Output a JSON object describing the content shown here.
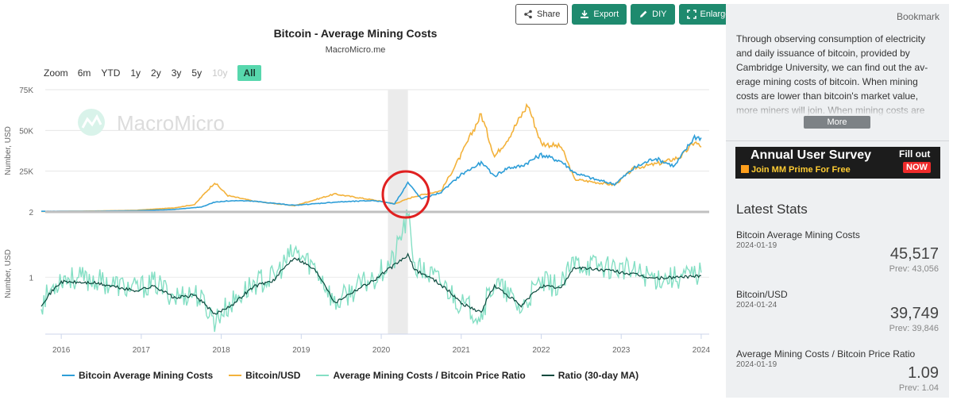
{
  "toolbar": {
    "share": "Share",
    "export": "Export",
    "diy": "DIY",
    "enlarge": "Enlarge"
  },
  "chart": {
    "title": "Bitcoin - Average Mining Costs",
    "subtitle": "MacroMicro.me",
    "watermark": "MacroMicro",
    "zoom_label": "Zoom",
    "zoom_buttons": [
      "6m",
      "YTD",
      "1y",
      "2y",
      "3y",
      "5y",
      "10y",
      "All"
    ],
    "zoom_active": "All",
    "zoom_disabled": [
      "10y"
    ],
    "upper_axis_title": "Number, USD",
    "lower_axis_title": "Number, USD",
    "upper_ticks": [
      "75K",
      "50K",
      "25K",
      "2"
    ],
    "lower_ticks": [
      "1"
    ],
    "x_ticks": [
      "2016",
      "2017",
      "2018",
      "2019",
      "2020",
      "2021",
      "2022",
      "2023",
      "2024"
    ],
    "legend": [
      {
        "label": "Bitcoin Average Mining Costs",
        "color": "#2e9ed8"
      },
      {
        "label": "Bitcoin/USD",
        "color": "#f3b23b"
      },
      {
        "label": "Average Mining Costs / Bitcoin Price Ratio",
        "color": "#84dfc4"
      },
      {
        "label": "Ratio (30-day MA)",
        "color": "#0c4a3e"
      }
    ],
    "highlight_band": [
      "2020-02",
      "2020-05"
    ],
    "annotation_circle_color": "#e02020"
  },
  "chart_data": {
    "type": "line",
    "x_range": [
      "2015-10",
      "2024-02"
    ],
    "panels": [
      {
        "name": "upper",
        "scale": "linear",
        "ylim": [
          2,
          75000
        ],
        "series": [
          {
            "name": "Bitcoin Average Mining Costs",
            "color": "#2e9ed8",
            "points": [
              [
                "2015-10",
                400
              ],
              [
                "2016-06",
                500
              ],
              [
                "2016-12",
                700
              ],
              [
                "2017-06",
                1500
              ],
              [
                "2017-10",
                3000
              ],
              [
                "2017-12",
                6000
              ],
              [
                "2018-03",
                7000
              ],
              [
                "2018-06",
                6500
              ],
              [
                "2018-12",
                4000
              ],
              [
                "2019-06",
                6000
              ],
              [
                "2019-12",
                7000
              ],
              [
                "2020-03",
                5000
              ],
              [
                "2020-05",
                18000
              ],
              [
                "2020-07",
                8000
              ],
              [
                "2020-10",
                12000
              ],
              [
                "2021-01",
                23000
              ],
              [
                "2021-04",
                30000
              ],
              [
                "2021-06",
                22000
              ],
              [
                "2021-08",
                27000
              ],
              [
                "2021-10",
                28000
              ],
              [
                "2022-01",
                35000
              ],
              [
                "2022-04",
                31000
              ],
              [
                "2022-06",
                24000
              ],
              [
                "2022-09",
                20000
              ],
              [
                "2022-12",
                17000
              ],
              [
                "2023-03",
                27000
              ],
              [
                "2023-06",
                33000
              ],
              [
                "2023-09",
                28000
              ],
              [
                "2023-12",
                46000
              ],
              [
                "2024-01",
                45517
              ]
            ]
          },
          {
            "name": "Bitcoin/USD",
            "color": "#f3b23b",
            "points": [
              [
                "2015-10",
                250
              ],
              [
                "2016-06",
                600
              ],
              [
                "2016-12",
                950
              ],
              [
                "2017-06",
                2500
              ],
              [
                "2017-09",
                4500
              ],
              [
                "2017-12",
                18000
              ],
              [
                "2018-02",
                10000
              ],
              [
                "2018-06",
                6500
              ],
              [
                "2018-12",
                3800
              ],
              [
                "2019-06",
                11000
              ],
              [
                "2019-12",
                7200
              ],
              [
                "2020-03",
                5000
              ],
              [
                "2020-06",
                9500
              ],
              [
                "2020-10",
                13000
              ],
              [
                "2021-01",
                35000
              ],
              [
                "2021-04",
                60000
              ],
              [
                "2021-06",
                34000
              ],
              [
                "2021-08",
                45000
              ],
              [
                "2021-11",
                66000
              ],
              [
                "2022-01",
                42000
              ],
              [
                "2022-04",
                40000
              ],
              [
                "2022-06",
                20000
              ],
              [
                "2022-12",
                16500
              ],
              [
                "2023-03",
                27000
              ],
              [
                "2023-07",
                30000
              ],
              [
                "2023-10",
                34000
              ],
              [
                "2023-12",
                43000
              ],
              [
                "2024-01",
                39749
              ]
            ]
          }
        ]
      },
      {
        "name": "lower",
        "scale": "log",
        "series": [
          {
            "name": "Average Mining Costs / Bitcoin Price Ratio",
            "color": "#84dfc4",
            "points": [
              [
                "2015-10",
                0.6
              ],
              [
                "2016-01",
                1.0
              ],
              [
                "2016-06",
                0.95
              ],
              [
                "2016-12",
                0.8
              ],
              [
                "2017-03",
                0.9
              ],
              [
                "2017-06",
                0.7
              ],
              [
                "2017-09",
                0.75
              ],
              [
                "2017-12",
                0.45
              ],
              [
                "2018-03",
                0.65
              ],
              [
                "2018-06",
                0.9
              ],
              [
                "2018-09",
                1.0
              ],
              [
                "2018-12",
                1.6
              ],
              [
                "2019-03",
                1.2
              ],
              [
                "2019-06",
                0.6
              ],
              [
                "2019-09",
                0.8
              ],
              [
                "2019-12",
                1.0
              ],
              [
                "2020-03",
                1.4
              ],
              [
                "2020-05",
                3.0
              ],
              [
                "2020-06",
                1.2
              ],
              [
                "2020-09",
                1.0
              ],
              [
                "2021-01",
                0.6
              ],
              [
                "2021-04",
                0.5
              ],
              [
                "2021-06",
                0.9
              ],
              [
                "2021-10",
                0.55
              ],
              [
                "2022-01",
                0.9
              ],
              [
                "2022-04",
                0.85
              ],
              [
                "2022-06",
                1.3
              ],
              [
                "2022-12",
                1.2
              ],
              [
                "2023-03",
                1.1
              ],
              [
                "2023-06",
                1.0
              ],
              [
                "2023-09",
                1.0
              ],
              [
                "2023-12",
                1.05
              ],
              [
                "2024-01",
                1.09
              ]
            ]
          },
          {
            "name": "Ratio (30-day MA)",
            "color": "#0c4a3e",
            "points": [
              [
                "2015-10",
                0.6
              ],
              [
                "2016-01",
                0.92
              ],
              [
                "2016-06",
                0.9
              ],
              [
                "2016-12",
                0.78
              ],
              [
                "2017-03",
                0.85
              ],
              [
                "2017-06",
                0.68
              ],
              [
                "2017-09",
                0.72
              ],
              [
                "2017-12",
                0.5
              ],
              [
                "2018-03",
                0.62
              ],
              [
                "2018-06",
                0.85
              ],
              [
                "2018-09",
                0.95
              ],
              [
                "2018-12",
                1.45
              ],
              [
                "2019-03",
                1.15
              ],
              [
                "2019-06",
                0.62
              ],
              [
                "2019-09",
                0.78
              ],
              [
                "2019-12",
                0.95
              ],
              [
                "2020-03",
                1.25
              ],
              [
                "2020-05",
                1.5
              ],
              [
                "2020-06",
                1.15
              ],
              [
                "2020-09",
                0.95
              ],
              [
                "2021-01",
                0.62
              ],
              [
                "2021-04",
                0.52
              ],
              [
                "2021-06",
                0.85
              ],
              [
                "2021-10",
                0.58
              ],
              [
                "2022-01",
                0.85
              ],
              [
                "2022-04",
                0.82
              ],
              [
                "2022-06",
                1.2
              ],
              [
                "2022-12",
                1.12
              ],
              [
                "2023-03",
                1.05
              ],
              [
                "2023-06",
                0.98
              ],
              [
                "2023-09",
                1.0
              ],
              [
                "2023-12",
                1.02
              ],
              [
                "2024-01",
                1.03
              ]
            ]
          }
        ]
      }
    ]
  },
  "sidebar": {
    "bookmark": "Bookmark",
    "description": "Through observing consumption of electricity and daily issuance of bitcoin, provided by Cambridge University, we can find out the av-erage mining costs of bitcoin. When mining costs are lower than bitcoin's market value, more miners will join. When mining costs are",
    "more": "More",
    "banner": {
      "title": "Annual User Survey",
      "subtitle": "Join MM Prime For Free",
      "fill_out": "Fill out",
      "now": "NOW"
    },
    "latest_stats_title": "Latest Stats",
    "stats": [
      {
        "name": "Bitcoin Average Mining Costs",
        "date": "2024-01-19",
        "value": "45,517",
        "prev": "Prev: 43,056"
      },
      {
        "name": "Bitcoin/USD",
        "date": "2024-01-24",
        "value": "39,749",
        "prev": "Prev: 39,846"
      },
      {
        "name": "Average Mining Costs / Bitcoin Price Ratio",
        "date": "2024-01-19",
        "value": "1.09",
        "prev": "Prev: 1.04"
      }
    ]
  }
}
